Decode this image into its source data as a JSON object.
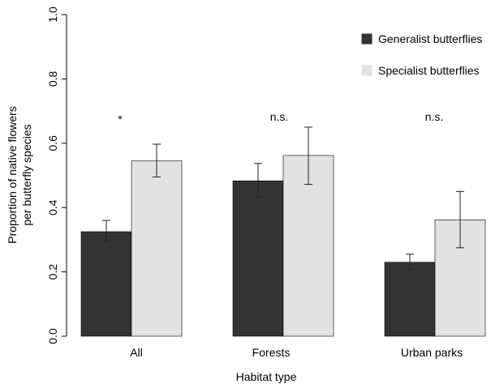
{
  "chart_data": {
    "type": "bar",
    "xlabel": "Habitat type",
    "ylabel_lines": [
      "Proportion of native flowers",
      "per butterfly species"
    ],
    "ylim": [
      0,
      1.0
    ],
    "yticks": [
      "0.0",
      "0.2",
      "0.4",
      "0.6",
      "0.8",
      "1.0"
    ],
    "categories": [
      "All",
      "Forests",
      "Urban parks"
    ],
    "significance": [
      "*",
      "n.s.",
      "n.s."
    ],
    "legend_position": "top-right",
    "series": [
      {
        "name": "Generalist butterflies",
        "color": "#333333",
        "values": [
          0.325,
          0.483,
          0.23
        ],
        "error_low": [
          0.295,
          0.432,
          0.207
        ],
        "error_high": [
          0.36,
          0.537,
          0.255
        ]
      },
      {
        "name": "Specialist butterflies",
        "color": "#e2e2e2",
        "values": [
          0.545,
          0.562,
          0.362
        ],
        "error_low": [
          0.495,
          0.472,
          0.275
        ],
        "error_high": [
          0.597,
          0.65,
          0.45
        ]
      }
    ]
  }
}
